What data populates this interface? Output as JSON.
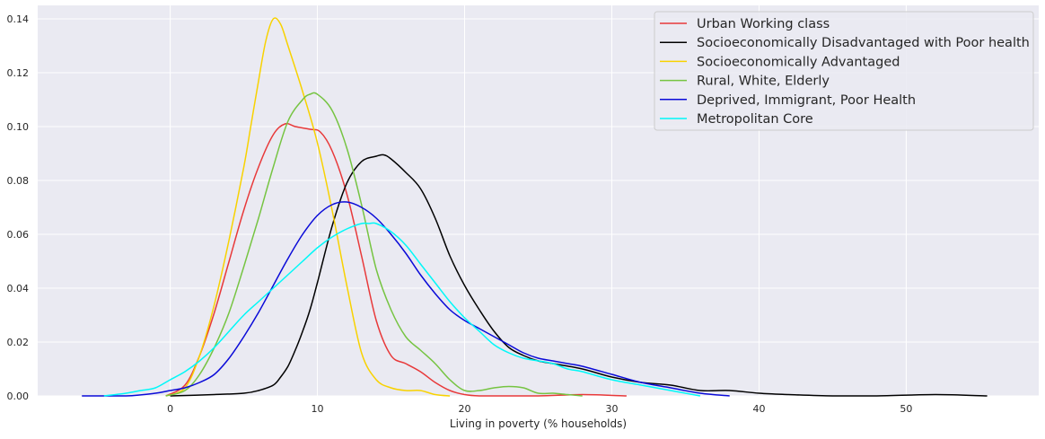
{
  "chart_data": {
    "type": "line",
    "title": "",
    "xlabel": "Living in poverty (% households)",
    "ylabel": "",
    "xlim": [
      -9,
      59
    ],
    "ylim": [
      0,
      0.145
    ],
    "x_ticks": [
      0,
      10,
      20,
      30,
      40,
      50
    ],
    "y_ticks": [
      0.0,
      0.02,
      0.04,
      0.06,
      0.08,
      0.1,
      0.12,
      0.14
    ],
    "grid": true,
    "legend_position": "top-right",
    "series": [
      {
        "name": "Urban Working class",
        "color": "#e8393a",
        "x": [
          -0.3,
          1,
          2,
          3,
          4,
          5,
          6,
          7,
          7.8,
          8.5,
          9.5,
          10.2,
          11,
          12,
          13,
          14,
          15,
          16,
          17,
          18,
          19,
          20,
          21,
          22,
          25,
          28,
          31
        ],
        "y": [
          0,
          0.004,
          0.015,
          0.031,
          0.05,
          0.069,
          0.085,
          0.097,
          0.101,
          0.1,
          0.099,
          0.098,
          0.091,
          0.075,
          0.052,
          0.028,
          0.015,
          0.012,
          0.009,
          0.005,
          0.002,
          0.0005,
          0,
          0,
          0,
          0.0005,
          0
        ]
      },
      {
        "name": "Socioeconomically Disadvantaged with Poor health",
        "color": "#000000",
        "x": [
          0,
          3,
          5,
          6,
          7,
          7.5,
          8,
          8.5,
          9,
          9.5,
          10,
          11,
          12,
          13,
          14,
          14.5,
          15,
          16,
          17,
          18,
          19,
          20,
          21,
          22,
          23,
          24,
          25,
          26,
          28,
          30,
          32,
          34,
          36,
          38,
          40,
          42,
          45,
          48,
          52,
          55.5
        ],
        "y": [
          0,
          0.0005,
          0.001,
          0.002,
          0.004,
          0.007,
          0.011,
          0.017,
          0.024,
          0.032,
          0.042,
          0.063,
          0.079,
          0.087,
          0.089,
          0.0895,
          0.088,
          0.083,
          0.077,
          0.066,
          0.052,
          0.041,
          0.032,
          0.024,
          0.018,
          0.015,
          0.013,
          0.012,
          0.01,
          0.007,
          0.005,
          0.004,
          0.002,
          0.002,
          0.001,
          0.0005,
          0,
          0,
          0.0005,
          0
        ]
      },
      {
        "name": "Socioeconomically Advantaged",
        "color": "#f8d200",
        "x": [
          -0.3,
          1,
          2,
          3,
          4,
          5,
          5.5,
          6,
          6.5,
          7,
          7.5,
          8,
          9,
          10,
          11,
          12,
          13,
          14,
          15,
          16,
          17,
          18,
          19
        ],
        "y": [
          0,
          0.003,
          0.015,
          0.034,
          0.058,
          0.085,
          0.101,
          0.117,
          0.132,
          0.14,
          0.138,
          0.13,
          0.113,
          0.094,
          0.069,
          0.041,
          0.016,
          0.006,
          0.003,
          0.002,
          0.002,
          0.0005,
          0
        ]
      },
      {
        "name": "Rural, White, Elderly",
        "color": "#76c442",
        "x": [
          -0.3,
          1,
          2,
          3,
          4,
          5,
          6,
          7,
          8,
          9,
          9.5,
          10,
          11,
          12,
          13,
          14,
          15,
          16,
          17,
          18,
          19,
          20,
          21,
          22,
          23,
          24,
          25,
          26,
          27,
          28
        ],
        "y": [
          0,
          0.002,
          0.008,
          0.018,
          0.031,
          0.048,
          0.066,
          0.085,
          0.102,
          0.11,
          0.112,
          0.112,
          0.106,
          0.092,
          0.071,
          0.047,
          0.032,
          0.022,
          0.017,
          0.012,
          0.006,
          0.002,
          0.002,
          0.003,
          0.0035,
          0.003,
          0.001,
          0.001,
          0.0005,
          0
        ]
      },
      {
        "name": "Deprived, Immigrant, Poor Health",
        "color": "#0a0ad8",
        "x": [
          -6,
          -3,
          -1,
          0,
          1,
          2,
          3,
          4,
          5,
          6,
          7,
          8,
          9,
          10,
          11,
          12,
          13,
          14,
          15,
          16,
          17,
          18,
          19,
          20,
          21,
          22,
          23,
          24,
          25,
          26,
          27,
          28,
          30,
          32,
          34,
          36,
          38
        ],
        "y": [
          0,
          0,
          0.001,
          0.002,
          0.003,
          0.005,
          0.008,
          0.014,
          0.022,
          0.031,
          0.041,
          0.051,
          0.06,
          0.067,
          0.071,
          0.072,
          0.07,
          0.066,
          0.06,
          0.053,
          0.045,
          0.038,
          0.032,
          0.028,
          0.025,
          0.022,
          0.019,
          0.016,
          0.014,
          0.013,
          0.012,
          0.011,
          0.008,
          0.005,
          0.003,
          0.001,
          0
        ]
      },
      {
        "name": "Metropolitan Core",
        "color": "#00f8f8",
        "x": [
          -4.5,
          -3,
          -2,
          -1,
          0,
          1,
          2,
          3,
          4,
          5,
          6,
          7,
          8,
          9,
          10,
          11,
          12,
          13,
          13.5,
          14,
          15,
          16,
          17,
          18,
          19,
          20,
          21,
          22,
          23,
          24,
          25,
          26,
          27,
          28,
          30,
          32,
          34,
          36
        ],
        "y": [
          0,
          0.001,
          0.002,
          0.003,
          0.006,
          0.009,
          0.013,
          0.018,
          0.024,
          0.03,
          0.035,
          0.04,
          0.045,
          0.05,
          0.055,
          0.059,
          0.062,
          0.064,
          0.064,
          0.064,
          0.061,
          0.056,
          0.049,
          0.042,
          0.035,
          0.029,
          0.024,
          0.019,
          0.016,
          0.014,
          0.013,
          0.012,
          0.01,
          0.009,
          0.006,
          0.004,
          0.002,
          0
        ]
      }
    ]
  }
}
